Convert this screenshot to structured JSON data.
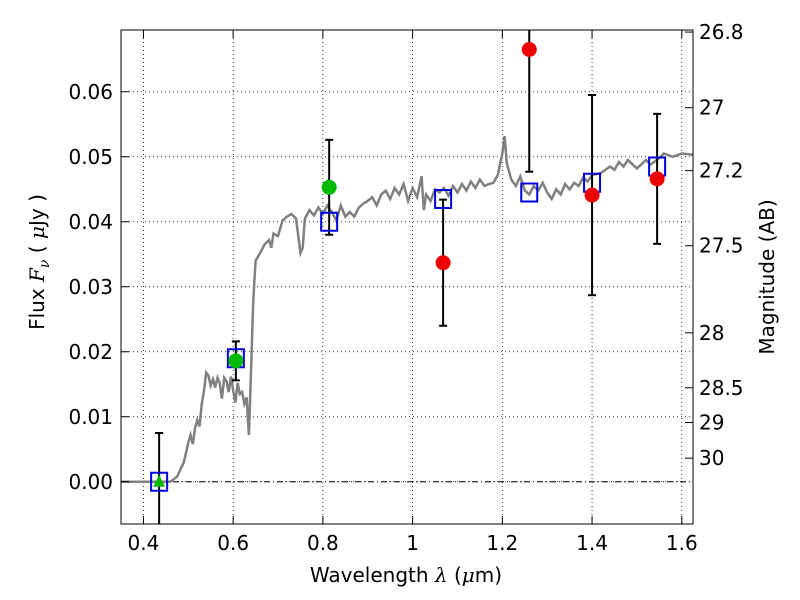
{
  "chart_data": {
    "type": "scatter",
    "xlabel": "Wavelength  λ (μm)",
    "ylabel": "Flux  F ν ( μJy )",
    "ylabel_parts": {
      "prefix": "Flux",
      "F": "F",
      "nu": "ν",
      "open": "(",
      "mu": "μ",
      "unit": "Jy",
      "close": ")"
    },
    "xlabel_parts": {
      "text": "Wavelength",
      "lambda": "λ",
      "open": "(",
      "mu": "μ",
      "unit": "m)"
    },
    "y2label": "Magnitude (AB)",
    "xlim": [
      0.35,
      1.625
    ],
    "ylim": [
      -0.0065,
      0.0695
    ],
    "x_ticks": [
      0.4,
      0.6,
      0.8,
      1.0,
      1.2,
      1.4,
      1.6
    ],
    "x_tick_labels": [
      "0.4",
      "0.6",
      "0.8",
      "1",
      "1.2",
      "1.4",
      "1.6"
    ],
    "y_ticks": [
      0.0,
      0.01,
      0.02,
      0.03,
      0.04,
      0.05,
      0.06
    ],
    "y_tick_labels": [
      "0.00",
      "0.01",
      "0.02",
      "0.03",
      "0.04",
      "0.05",
      "0.06"
    ],
    "mag_ticks": [
      26.8,
      27.0,
      27.2,
      27.5,
      28.0,
      28.5,
      29.0,
      30.0
    ],
    "mag_tick_labels": [
      "26.8",
      "27",
      "27.2",
      "27.5",
      "28",
      "28.5",
      "29",
      "30"
    ],
    "grid": true,
    "colors": {
      "model": "#808080",
      "green": "#00bb00",
      "red": "#ee0000",
      "box": "#0000dd",
      "error": "#000000"
    },
    "model_sed": [
      [
        0.35,
        0.0
      ],
      [
        0.46,
        0.0
      ],
      [
        0.475,
        0.0008
      ],
      [
        0.49,
        0.003
      ],
      [
        0.5,
        0.006
      ],
      [
        0.505,
        0.0072
      ],
      [
        0.51,
        0.0058
      ],
      [
        0.515,
        0.0082
      ],
      [
        0.52,
        0.0095
      ],
      [
        0.525,
        0.0085
      ],
      [
        0.53,
        0.012
      ],
      [
        0.535,
        0.014
      ],
      [
        0.54,
        0.0168
      ],
      [
        0.545,
        0.0163
      ],
      [
        0.55,
        0.0148
      ],
      [
        0.555,
        0.0158
      ],
      [
        0.56,
        0.0145
      ],
      [
        0.565,
        0.016
      ],
      [
        0.57,
        0.0152
      ],
      [
        0.575,
        0.0128
      ],
      [
        0.58,
        0.016
      ],
      [
        0.585,
        0.0155
      ],
      [
        0.59,
        0.0138
      ],
      [
        0.595,
        0.0162
      ],
      [
        0.6,
        0.014
      ],
      [
        0.605,
        0.0122
      ],
      [
        0.61,
        0.0152
      ],
      [
        0.615,
        0.0135
      ],
      [
        0.62,
        0.0138
      ],
      [
        0.625,
        0.012
      ],
      [
        0.63,
        0.013
      ],
      [
        0.635,
        0.0072
      ],
      [
        0.64,
        0.0175
      ],
      [
        0.645,
        0.028
      ],
      [
        0.65,
        0.034
      ],
      [
        0.66,
        0.0352
      ],
      [
        0.67,
        0.0365
      ],
      [
        0.68,
        0.0372
      ],
      [
        0.685,
        0.036
      ],
      [
        0.69,
        0.0382
      ],
      [
        0.7,
        0.0378
      ],
      [
        0.71,
        0.0402
      ],
      [
        0.72,
        0.0408
      ],
      [
        0.73,
        0.0412
      ],
      [
        0.74,
        0.0405
      ],
      [
        0.75,
        0.0352
      ],
      [
        0.755,
        0.036
      ],
      [
        0.76,
        0.0405
      ],
      [
        0.77,
        0.0418
      ],
      [
        0.78,
        0.041
      ],
      [
        0.79,
        0.0422
      ],
      [
        0.8,
        0.0412
      ],
      [
        0.81,
        0.0425
      ],
      [
        0.82,
        0.0415
      ],
      [
        0.83,
        0.0402
      ],
      [
        0.84,
        0.0425
      ],
      [
        0.85,
        0.0408
      ],
      [
        0.86,
        0.0415
      ],
      [
        0.87,
        0.0408
      ],
      [
        0.88,
        0.0422
      ],
      [
        0.89,
        0.0428
      ],
      [
        0.9,
        0.0432
      ],
      [
        0.91,
        0.0438
      ],
      [
        0.92,
        0.0425
      ],
      [
        0.93,
        0.0442
      ],
      [
        0.94,
        0.0448
      ],
      [
        0.95,
        0.0435
      ],
      [
        0.96,
        0.0452
      ],
      [
        0.97,
        0.0442
      ],
      [
        0.98,
        0.0458
      ],
      [
        0.99,
        0.0432
      ],
      [
        1.0,
        0.0452
      ],
      [
        1.01,
        0.0438
      ],
      [
        1.02,
        0.047
      ],
      [
        1.025,
        0.0418
      ],
      [
        1.03,
        0.0442
      ],
      [
        1.04,
        0.0432
      ],
      [
        1.05,
        0.045
      ],
      [
        1.06,
        0.0445
      ],
      [
        1.07,
        0.0452
      ],
      [
        1.08,
        0.044
      ],
      [
        1.09,
        0.0455
      ],
      [
        1.1,
        0.0445
      ],
      [
        1.11,
        0.0458
      ],
      [
        1.12,
        0.0448
      ],
      [
        1.13,
        0.0462
      ],
      [
        1.14,
        0.0452
      ],
      [
        1.15,
        0.0465
      ],
      [
        1.16,
        0.0455
      ],
      [
        1.17,
        0.0458
      ],
      [
        1.18,
        0.046
      ],
      [
        1.19,
        0.0472
      ],
      [
        1.2,
        0.0505
      ],
      [
        1.205,
        0.0532
      ],
      [
        1.21,
        0.049
      ],
      [
        1.22,
        0.0465
      ],
      [
        1.23,
        0.0455
      ],
      [
        1.24,
        0.047
      ],
      [
        1.25,
        0.0448
      ],
      [
        1.26,
        0.0442
      ],
      [
        1.27,
        0.0455
      ],
      [
        1.28,
        0.0448
      ],
      [
        1.29,
        0.046
      ],
      [
        1.3,
        0.0445
      ],
      [
        1.31,
        0.0435
      ],
      [
        1.32,
        0.045
      ],
      [
        1.33,
        0.0442
      ],
      [
        1.34,
        0.0458
      ],
      [
        1.35,
        0.045
      ],
      [
        1.36,
        0.046
      ],
      [
        1.37,
        0.0455
      ],
      [
        1.38,
        0.0468
      ],
      [
        1.39,
        0.0462
      ],
      [
        1.4,
        0.0472
      ],
      [
        1.42,
        0.0475
      ],
      [
        1.44,
        0.0485
      ],
      [
        1.45,
        0.048
      ],
      [
        1.46,
        0.0492
      ],
      [
        1.47,
        0.0485
      ],
      [
        1.48,
        0.0495
      ],
      [
        1.5,
        0.0482
      ],
      [
        1.52,
        0.0495
      ],
      [
        1.53,
        0.0488
      ],
      [
        1.55,
        0.0498
      ],
      [
        1.56,
        0.0505
      ],
      [
        1.58,
        0.05
      ],
      [
        1.6,
        0.0505
      ],
      [
        1.625,
        0.0503
      ]
    ],
    "model_boxes": [
      {
        "x": 0.435,
        "y": 0.0
      },
      {
        "x": 0.606,
        "y": 0.019
      },
      {
        "x": 0.814,
        "y": 0.04
      },
      {
        "x": 1.068,
        "y": 0.0435
      },
      {
        "x": 1.26,
        "y": 0.0445
      },
      {
        "x": 1.4,
        "y": 0.046
      },
      {
        "x": 1.545,
        "y": 0.0485
      }
    ],
    "observations": [
      {
        "x": 0.435,
        "y": 0.0,
        "err": 0.0075,
        "color": "green",
        "marker": "triangle"
      },
      {
        "x": 0.606,
        "y": 0.0186,
        "err": 0.003,
        "color": "green",
        "marker": "circle"
      },
      {
        "x": 0.814,
        "y": 0.0453,
        "err": 0.0073,
        "color": "green",
        "marker": "circle"
      },
      {
        "x": 1.068,
        "y": 0.0337,
        "err": 0.0097,
        "color": "red",
        "marker": "circle"
      },
      {
        "x": 1.26,
        "y": 0.0665,
        "err": 0.0188,
        "color": "red",
        "marker": "circle"
      },
      {
        "x": 1.4,
        "y": 0.0441,
        "err": 0.0154,
        "color": "red",
        "marker": "circle"
      },
      {
        "x": 1.545,
        "y": 0.0466,
        "err": 0.01,
        "color": "red",
        "marker": "circle"
      }
    ]
  }
}
